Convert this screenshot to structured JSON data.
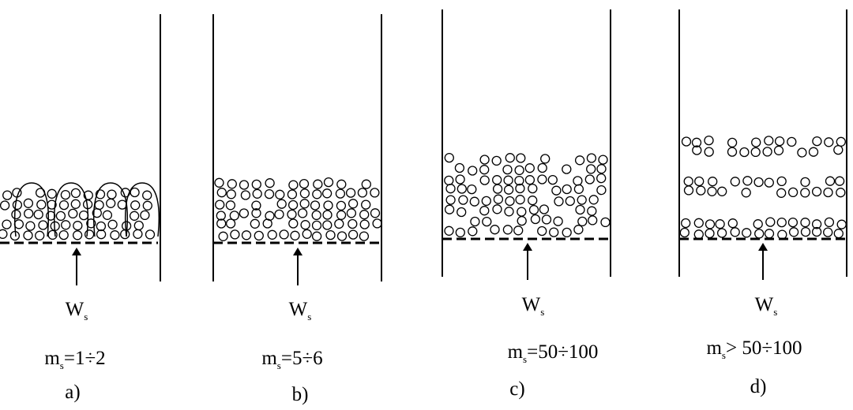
{
  "panels": [
    {
      "label": "a)",
      "flow_symbol": "W",
      "flow_subscript": "s",
      "condition_symbol": "m",
      "condition_subscript": "s",
      "condition_value": "=1÷2"
    },
    {
      "label": "b)",
      "flow_symbol": "W",
      "flow_subscript": "s",
      "condition_symbol": "m",
      "condition_subscript": "s",
      "condition_value": "=5÷6"
    },
    {
      "label": "c)",
      "flow_symbol": "W",
      "flow_subscript": "s",
      "condition_symbol": "m",
      "condition_subscript": "s",
      "condition_value": "=50÷100"
    },
    {
      "label": "d)",
      "flow_symbol": "W",
      "flow_subscript": "s",
      "condition_symbol": "m",
      "condition_subscript": "s",
      "condition_value": "> 50÷100"
    }
  ]
}
